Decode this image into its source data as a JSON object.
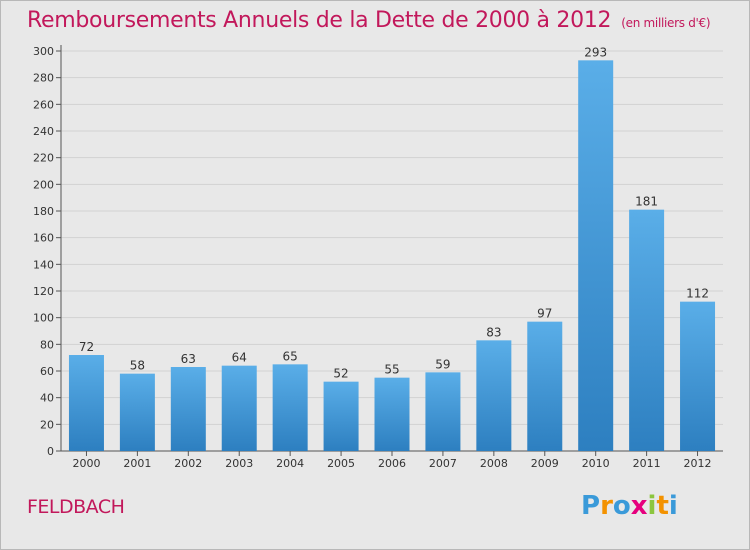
{
  "header": {
    "title": "Remboursements Annuels de la Dette de 2000 à 2012",
    "subtitle": "(en milliers d'€)"
  },
  "footer": {
    "place": "FELDBACH",
    "logo_letters": [
      "P",
      "r",
      "o",
      "x",
      "i",
      "t",
      "i"
    ],
    "logo_colors": [
      "#3a9ad9",
      "#f39200",
      "#3a9ad9",
      "#e6007e",
      "#8cc63f",
      "#f39200",
      "#3a9ad9"
    ]
  },
  "chart_data": {
    "type": "bar",
    "title": "Remboursements Annuels de la Dette de 2000 à 2012",
    "categories": [
      "2000",
      "2001",
      "2002",
      "2003",
      "2004",
      "2005",
      "2006",
      "2007",
      "2008",
      "2009",
      "2010",
      "2011",
      "2012"
    ],
    "values": [
      72,
      58,
      63,
      64,
      65,
      52,
      55,
      59,
      83,
      97,
      293,
      181,
      112
    ],
    "ylim": [
      0,
      300
    ],
    "yticks": [
      0,
      20,
      40,
      60,
      80,
      100,
      120,
      140,
      160,
      180,
      200,
      220,
      240,
      260,
      280,
      300
    ],
    "grid": true,
    "bar_color_top": "#5aaee8",
    "bar_color_bottom": "#2d7fc0"
  }
}
